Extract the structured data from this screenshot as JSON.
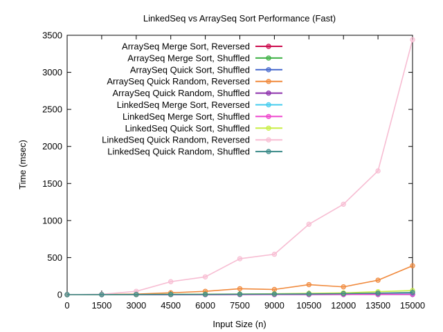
{
  "chart_data": {
    "type": "line",
    "title": "LinkedSeq vs ArraySeq Sort Performance (Fast)",
    "xlabel": "Input Size (n)",
    "ylabel": "Time (msec)",
    "xlim": [
      0,
      15000
    ],
    "ylim": [
      0,
      3500
    ],
    "x_ticks": [
      0,
      1500,
      3000,
      4500,
      6000,
      7500,
      9000,
      10500,
      12000,
      13500,
      15000
    ],
    "y_ticks": [
      0,
      500,
      1000,
      1500,
      2000,
      2500,
      3000,
      3500
    ],
    "grid": false,
    "legend_position": "top-left",
    "x": [
      0,
      1500,
      3000,
      4500,
      6000,
      7500,
      9000,
      10500,
      12000,
      13500,
      15000
    ],
    "series": [
      {
        "name": "ArraySeq Merge Sort, Reversed",
        "color": "#cc0a4c",
        "values": [
          0,
          1,
          1,
          2,
          2,
          2,
          3,
          3,
          4,
          4,
          5
        ]
      },
      {
        "name": "ArraySeq Merge Sort, Shuffled",
        "color": "#3cb043",
        "values": [
          0,
          1,
          1,
          2,
          2,
          3,
          3,
          4,
          4,
          5,
          6
        ]
      },
      {
        "name": "ArraySeq Quick Sort, Shuffled",
        "color": "#4466cc",
        "values": [
          0,
          0,
          1,
          1,
          1,
          2,
          2,
          2,
          3,
          3,
          3
        ]
      },
      {
        "name": "ArraySeq Quick Random, Reversed",
        "color": "#f0883a",
        "values": [
          0,
          2,
          8,
          25,
          45,
          80,
          70,
          135,
          105,
          195,
          390
        ]
      },
      {
        "name": "ArraySeq Quick Random, Shuffled",
        "color": "#8a2daa",
        "values": [
          0,
          0,
          1,
          1,
          1,
          2,
          2,
          2,
          2,
          3,
          3
        ]
      },
      {
        "name": "LinkedSeq Merge Sort, Reversed",
        "color": "#44ccee",
        "values": [
          0,
          1,
          2,
          3,
          4,
          5,
          6,
          8,
          10,
          12,
          14
        ]
      },
      {
        "name": "LinkedSeq Merge Sort, Shuffled",
        "color": "#ee44cc",
        "values": [
          0,
          1,
          1,
          2,
          2,
          3,
          3,
          4,
          4,
          5,
          6
        ]
      },
      {
        "name": "LinkedSeq Quick Sort, Shuffled",
        "color": "#c8ee44",
        "values": [
          0,
          1,
          2,
          4,
          6,
          9,
          12,
          18,
          24,
          40,
          55
        ]
      },
      {
        "name": "LinkedSeq Quick Random, Reversed",
        "color": "#f7bcd2",
        "values": [
          0,
          5,
          45,
          175,
          240,
          485,
          545,
          950,
          1220,
          1670,
          3440
        ]
      },
      {
        "name": "LinkedSeq Quick Random, Shuffled",
        "color": "#3a8a88",
        "values": [
          0,
          1,
          2,
          3,
          4,
          6,
          8,
          10,
          14,
          20,
          30
        ]
      }
    ]
  }
}
